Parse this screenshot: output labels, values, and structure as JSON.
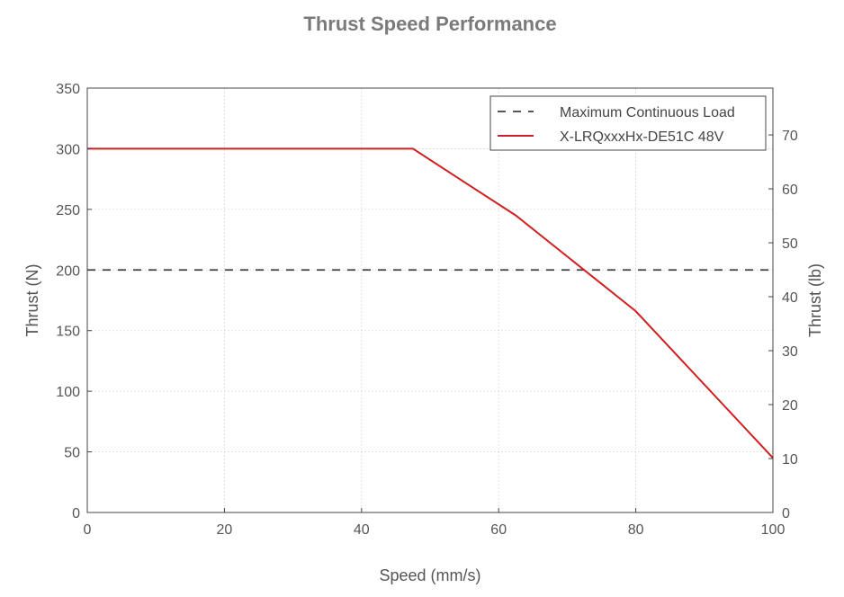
{
  "chart_data": {
    "type": "line",
    "title": "Thrust Speed Performance",
    "xlabel": "Speed (mm/s)",
    "ylabel": "Thrust (N)",
    "ylabel_right": "Thrust (lb)",
    "xlim": [
      0,
      100
    ],
    "ylim": [
      0,
      350
    ],
    "ylim_right": [
      0,
      78.68
    ],
    "x_ticks": [
      0,
      20,
      40,
      60,
      80,
      100
    ],
    "y_ticks": [
      0,
      50,
      100,
      150,
      200,
      250,
      300,
      350
    ],
    "y_ticks_right": [
      0,
      10,
      20,
      30,
      40,
      50,
      60,
      70
    ],
    "grid": true,
    "legend_position": "top-right",
    "series": [
      {
        "name": "Maximum Continuous Load",
        "style": "dashed",
        "color": "#404040",
        "x": [
          0,
          100
        ],
        "y": [
          200,
          200
        ]
      },
      {
        "name": "X-LRQxxxHx-DE51C 48V",
        "style": "solid",
        "color": "#cc2222",
        "x": [
          0,
          47.5,
          62.5,
          80,
          100
        ],
        "y": [
          300,
          300,
          245,
          166,
          45
        ]
      }
    ]
  }
}
